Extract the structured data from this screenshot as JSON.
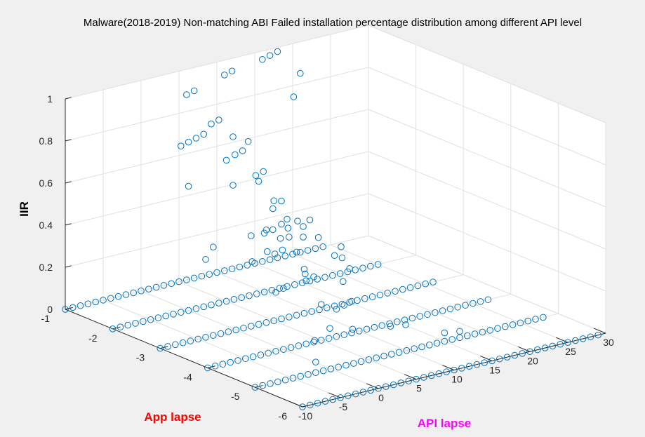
{
  "chart_data": {
    "type": "scatter",
    "subtype": "scatter3d",
    "title": "Malware(2018-2019) Non-matching ABI Failed installation percentage distribution among different API level",
    "xlabel": "API lapse",
    "ylabel": "App lapse",
    "zlabel": "IIR",
    "xlabel_color": "#ff00ff",
    "ylabel_color": "#ff0000",
    "zlabel_color": "#000000",
    "marker_color": "#0072bd",
    "background": "#f0f0f0",
    "axes_background": "#ffffff",
    "grid": true,
    "xlim": [
      -10,
      30
    ],
    "ylim": [
      -6,
      -1
    ],
    "zlim": [
      0,
      1
    ],
    "xticks": [
      "-10",
      "-5",
      "0",
      "5",
      "10",
      "15",
      "20",
      "25",
      "30"
    ],
    "yticks": [
      "-6",
      "-5",
      "-4",
      "-3",
      "-2",
      "-1"
    ],
    "zticks": [
      "0",
      "0.2",
      "0.4",
      "0.6",
      "0.8",
      "1"
    ],
    "baseline": {
      "z": 0,
      "rows": [
        {
          "y": -1,
          "x": [
            -10,
            24
          ]
        },
        {
          "y": -2,
          "x": [
            -10,
            25
          ]
        },
        {
          "y": -3,
          "x": [
            -10,
            26
          ]
        },
        {
          "y": -4,
          "x": [
            -10,
            27
          ]
        },
        {
          "y": -5,
          "x": [
            -10,
            28
          ]
        },
        {
          "y": -6,
          "x": [
            -10,
            29
          ]
        }
      ]
    },
    "points": [
      {
        "x": 16,
        "y": -1,
        "z": 0.96
      },
      {
        "x": 17,
        "y": -1,
        "z": 0.97
      },
      {
        "x": 18,
        "y": -1,
        "z": 0.98
      },
      {
        "x": 11,
        "y": -1,
        "z": 0.93
      },
      {
        "x": 12,
        "y": -1,
        "z": 0.94
      },
      {
        "x": 21,
        "y": -1,
        "z": 0.85
      },
      {
        "x": 17,
        "y": -1.5,
        "z": 0.82
      },
      {
        "x": 6,
        "y": -1,
        "z": 0.88
      },
      {
        "x": 7,
        "y": -1,
        "z": 0.89
      },
      {
        "x": 3,
        "y": -2,
        "z": 0.86
      },
      {
        "x": 4,
        "y": -2,
        "z": 0.87
      },
      {
        "x": -1,
        "y": -2,
        "z": 0.79
      },
      {
        "x": 0,
        "y": -2,
        "z": 0.8
      },
      {
        "x": 1,
        "y": -2,
        "z": 0.81
      },
      {
        "x": 2,
        "y": -2,
        "z": 0.82
      },
      {
        "x": 3,
        "y": -2.5,
        "z": 0.76
      },
      {
        "x": 4,
        "y": -2.5,
        "z": 0.77
      },
      {
        "x": 9,
        "y": -1.5,
        "z": 0.7
      },
      {
        "x": 3,
        "y": -3,
        "z": 0.68
      },
      {
        "x": 11,
        "y": -1.5,
        "z": 0.66
      },
      {
        "x": 5,
        "y": -2,
        "z": 0.67
      },
      {
        "x": 0,
        "y": -2,
        "z": 0.59
      },
      {
        "x": 5,
        "y": -3,
        "z": 0.57
      },
      {
        "x": 6,
        "y": -3,
        "z": 0.56
      },
      {
        "x": 5,
        "y": -3.5,
        "z": 0.52
      },
      {
        "x": 12,
        "y": -1.5,
        "z": 0.49
      },
      {
        "x": 13,
        "y": -1.5,
        "z": 0.5
      },
      {
        "x": 9,
        "y": -1.5,
        "z": 0.47
      },
      {
        "x": 8,
        "y": -2.5,
        "z": 0.46
      },
      {
        "x": 6,
        "y": -3,
        "z": 0.45
      },
      {
        "x": 4,
        "y": -3,
        "z": 0.44
      },
      {
        "x": 2,
        "y": -3,
        "z": 0.43
      },
      {
        "x": 1,
        "y": -3.5,
        "z": 0.41
      },
      {
        "x": -3,
        "y": -3,
        "z": 0.42
      },
      {
        "x": -4,
        "y": -3,
        "z": 0.37
      },
      {
        "x": -1,
        "y": -3.5,
        "z": 0.38
      },
      {
        "x": 2,
        "y": -3.5,
        "z": 0.39
      },
      {
        "x": 3,
        "y": -3.5,
        "z": 0.4
      },
      {
        "x": 7,
        "y": -3,
        "z": 0.38
      },
      {
        "x": 8,
        "y": -2.5,
        "z": 0.36
      },
      {
        "x": 10,
        "y": -2.5,
        "z": 0.35
      },
      {
        "x": 12,
        "y": -2.5,
        "z": 0.34
      },
      {
        "x": 13,
        "y": -2,
        "z": 0.32
      },
      {
        "x": 12,
        "y": -2.5,
        "z": 0.29
      },
      {
        "x": 9,
        "y": -2.5,
        "z": 0.31
      },
      {
        "x": 8,
        "y": -3,
        "z": 0.3
      },
      {
        "x": 10,
        "y": -2,
        "z": 0.28
      },
      {
        "x": 16,
        "y": -2,
        "z": 0.29
      },
      {
        "x": 14,
        "y": -2.5,
        "z": 0.27
      },
      {
        "x": 3,
        "y": -4,
        "z": 0.3
      },
      {
        "x": 4,
        "y": -4,
        "z": 0.31
      },
      {
        "x": 0,
        "y": -4,
        "z": 0.29
      },
      {
        "x": -1,
        "y": -4,
        "z": 0.28
      },
      {
        "x": 6,
        "y": -3.5,
        "z": 0.26
      },
      {
        "x": 13,
        "y": -3,
        "z": 0.24
      },
      {
        "x": 14,
        "y": -3,
        "z": 0.22
      },
      {
        "x": 17,
        "y": -2.5,
        "z": 0.2
      },
      {
        "x": 9,
        "y": -3,
        "z": 0.21
      },
      {
        "x": 11,
        "y": -3.5,
        "z": 0.18
      },
      {
        "x": 15,
        "y": -3,
        "z": 0.16
      },
      {
        "x": 5,
        "y": -4,
        "z": 0.17
      },
      {
        "x": 3,
        "y": -4.5,
        "z": 0.12
      },
      {
        "x": 7,
        "y": -4,
        "z": 0.13
      },
      {
        "x": 8,
        "y": -4,
        "z": 0.14
      },
      {
        "x": 9,
        "y": -4,
        "z": 0.15
      },
      {
        "x": 6,
        "y": -4.5,
        "z": 0.09
      },
      {
        "x": 1,
        "y": -4.5,
        "z": 0.08
      },
      {
        "x": -2,
        "y": -5,
        "z": 0.05
      },
      {
        "x": 11,
        "y": -4.5,
        "z": 0.06
      },
      {
        "x": 13,
        "y": -4.5,
        "z": 0.05
      },
      {
        "x": 15,
        "y": -5,
        "z": 0.04
      },
      {
        "x": 17,
        "y": -5,
        "z": 0.03
      }
    ]
  }
}
